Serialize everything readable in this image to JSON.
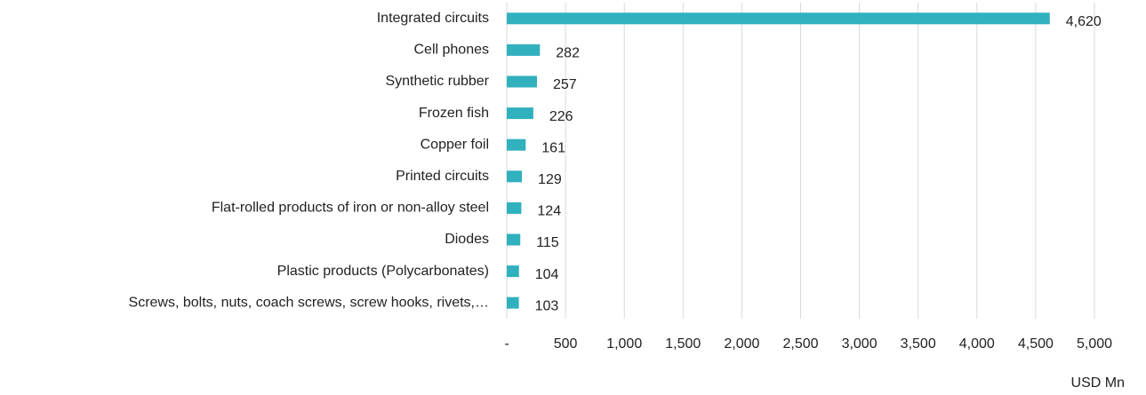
{
  "chart_data": {
    "type": "barh",
    "x_label": "USD Mn",
    "categories": [
      "Integrated circuits",
      "Cell phones",
      "Synthetic rubber",
      "Frozen fish",
      "Copper foil",
      "Printed circuits",
      "Flat-rolled products of iron or non-alloy steel",
      "Diodes",
      "Plastic products (Polycarbonates)",
      "Screws, bolts, nuts, coach screws, screw hooks, rivets,…"
    ],
    "values": [
      4620,
      282,
      257,
      226,
      161,
      129,
      124,
      115,
      104,
      103
    ],
    "value_labels": [
      "4,620",
      "282",
      "257",
      "226",
      "161",
      "129",
      "124",
      "115",
      "104",
      "103"
    ],
    "color": "#31b0be",
    "xlim": [
      0,
      5000
    ],
    "xticks": [
      {
        "value": 0,
        "label": "-"
      },
      500,
      {
        "value": 1000,
        "label": "1,000"
      },
      {
        "value": 1500,
        "label": "1,500"
      },
      {
        "value": 2000,
        "label": "2,000"
      },
      {
        "value": 2500,
        "label": "2,500"
      },
      {
        "value": 3000,
        "label": "3,000"
      },
      {
        "value": 3500,
        "label": "3,500"
      },
      {
        "value": 4000,
        "label": "4,000"
      },
      {
        "value": 4500,
        "label": "4,500"
      },
      {
        "value": 5000,
        "label": "5,000"
      }
    ],
    "grid": true
  }
}
